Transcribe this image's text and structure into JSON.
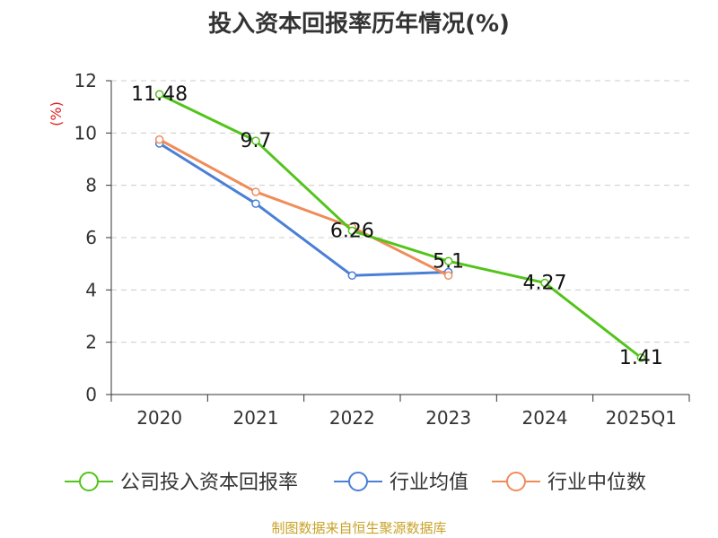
{
  "title": "投入资本回报率历年情况(%)",
  "source": "制图数据来自恒生聚源数据库",
  "colors": {
    "source_text": "#c9a227",
    "axis_unit": "#e02020",
    "grid": "#cccccc",
    "axis": "#333333",
    "tick_text": "#333333"
  },
  "chart_data": {
    "type": "line",
    "ylabel": "(%)",
    "ylim": [
      0,
      12
    ],
    "y_ticks": [
      0,
      2,
      4,
      6,
      8,
      10,
      12
    ],
    "categories": [
      "2020",
      "2021",
      "2022",
      "2023",
      "2024",
      "2025Q1"
    ],
    "grid": true,
    "legend_position": "bottom",
    "series": [
      {
        "name": "公司投入资本回报率",
        "color": "#52c41a",
        "values": [
          11.48,
          9.7,
          6.26,
          5.1,
          4.27,
          1.41
        ],
        "labels": [
          "11.48",
          "9.7",
          "6.26",
          "5.1",
          "4.27",
          "1.41"
        ]
      },
      {
        "name": "行业均值",
        "color": "#4a7fd6",
        "values": [
          9.6,
          7.3,
          4.55,
          4.68,
          null,
          null
        ]
      },
      {
        "name": "行业中位数",
        "color": "#f08c5a",
        "values": [
          9.75,
          7.75,
          6.4,
          4.55,
          null,
          null
        ]
      }
    ]
  }
}
